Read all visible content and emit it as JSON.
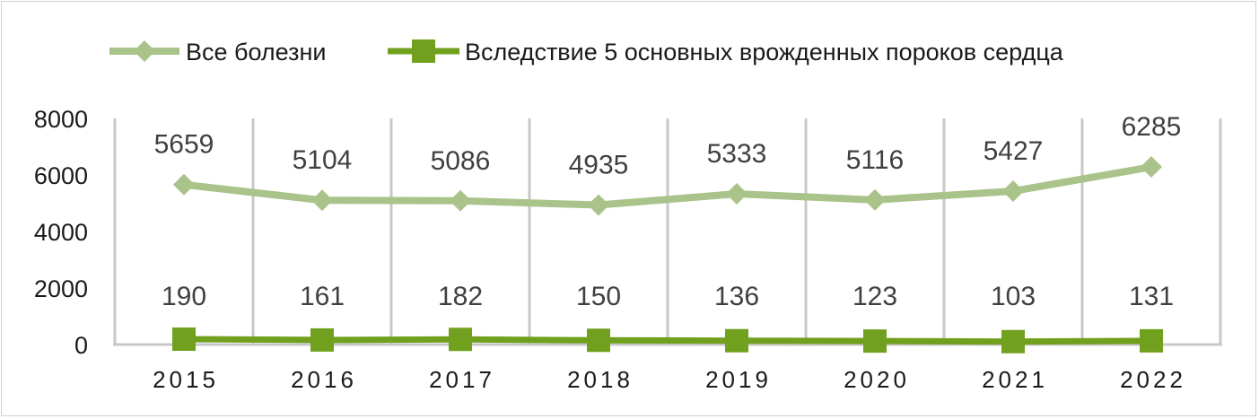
{
  "chart_data": {
    "type": "line",
    "categories": [
      "2015",
      "2016",
      "2017",
      "2018",
      "2019",
      "2020",
      "2021",
      "2022"
    ],
    "series": [
      {
        "name": "Все болезни",
        "values": [
          5659,
          5104,
          5086,
          4935,
          5333,
          5116,
          5427,
          6285
        ],
        "color": "#a9c38a",
        "marker": "diamond"
      },
      {
        "name": "Вследствие 5 основных врожденных пороков сердца",
        "values": [
          190,
          161,
          182,
          150,
          136,
          123,
          103,
          131
        ],
        "color": "#70a01e",
        "marker": "square"
      }
    ],
    "yticks": [
      "0",
      "2000",
      "4000",
      "6000",
      "8000"
    ],
    "ylim": [
      0,
      8000
    ],
    "grid": "vertical category separators",
    "legend": "top",
    "data_labels": true
  }
}
